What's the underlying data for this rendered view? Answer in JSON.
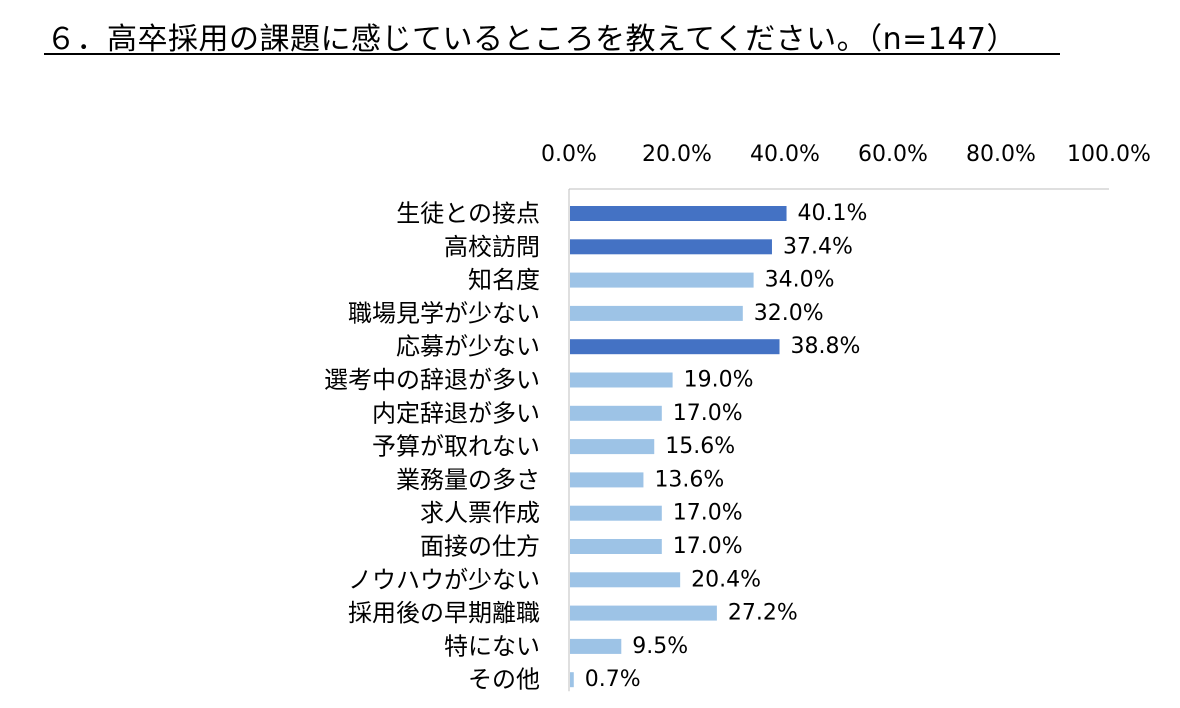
{
  "title": "６．高卒採用の課題に感じているところを教えてください。（n=147）",
  "chart_data": {
    "type": "bar",
    "orientation": "horizontal",
    "title": "６．高卒採用の課題に感じているところを教えてください。（n=147）",
    "xlabel": "",
    "ylabel": "",
    "xlim": [
      0,
      100
    ],
    "x_ticks": [
      "0.0%",
      "20.0%",
      "40.0%",
      "60.0%",
      "80.0%",
      "100.0%"
    ],
    "axis_position": "top",
    "grid": false,
    "legend": "none",
    "colors": {
      "highlight": "#4472C4",
      "normal": "#9DC3E6"
    },
    "categories": [
      "生徒との接点",
      "高校訪問",
      "知名度",
      "職場見学が少ない",
      "応募が少ない",
      "選考中の辞退が多い",
      "内定辞退が多い",
      "予算が取れない",
      "業務量の多さ",
      "求人票作成",
      "面接の仕方",
      "ノウハウが少ない",
      "採用後の早期離職",
      "特にない",
      "その他"
    ],
    "values": [
      40.1,
      37.4,
      34.0,
      32.0,
      38.8,
      19.0,
      17.0,
      15.6,
      13.6,
      17.0,
      17.0,
      20.4,
      27.2,
      9.5,
      0.7
    ],
    "data_labels": [
      "40.1%",
      "37.4%",
      "34.0%",
      "32.0%",
      "38.8%",
      "19.0%",
      "17.0%",
      "15.6%",
      "13.6%",
      "17.0%",
      "17.0%",
      "20.4%",
      "27.2%",
      "9.5%",
      "0.7%"
    ],
    "highlighted": [
      true,
      true,
      false,
      false,
      true,
      false,
      false,
      false,
      false,
      false,
      false,
      false,
      false,
      false,
      false
    ]
  }
}
